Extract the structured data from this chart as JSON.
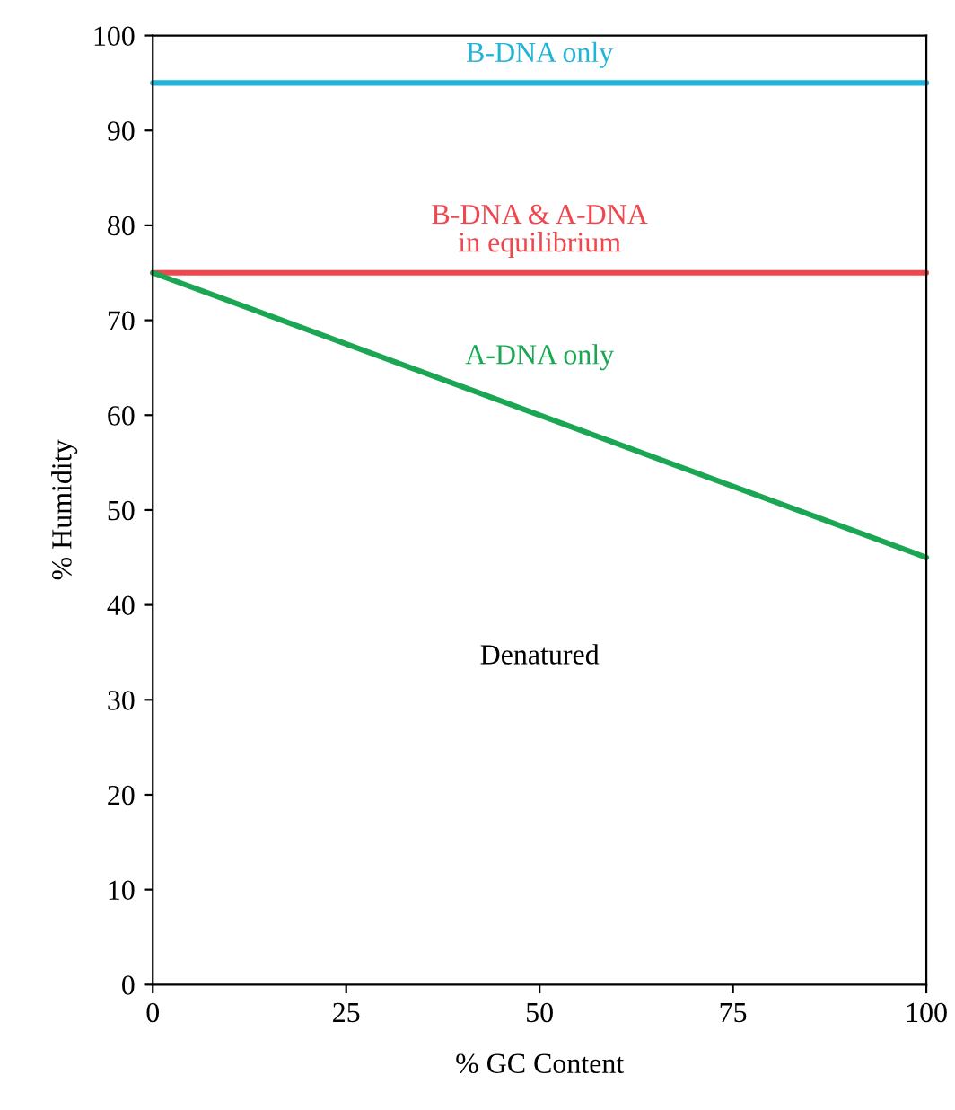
{
  "chart_data": {
    "type": "line",
    "xlabel": "% GC Content",
    "ylabel": "% Humidity",
    "x": [
      0,
      100
    ],
    "series": [
      {
        "name": "B-DNA only",
        "color": "#1fb4d8",
        "values": [
          95,
          95
        ]
      },
      {
        "name": "B-DNA & A-DNA\nin equilibrium",
        "color": "#f0474f",
        "values": [
          75,
          75
        ]
      },
      {
        "name": "A-DNA only",
        "color": "#1aa653",
        "values": [
          75,
          45
        ]
      }
    ],
    "annotations": [
      "Denatured"
    ],
    "xlim": [
      0,
      100
    ],
    "xticks": [
      0,
      25,
      50,
      75,
      100
    ],
    "ylim": [
      0,
      100
    ],
    "yticks": [
      0,
      10,
      20,
      30,
      40,
      50,
      60,
      70,
      80,
      90,
      100
    ],
    "grid": false,
    "legend": false,
    "marker": "none",
    "line_style": "solid"
  }
}
